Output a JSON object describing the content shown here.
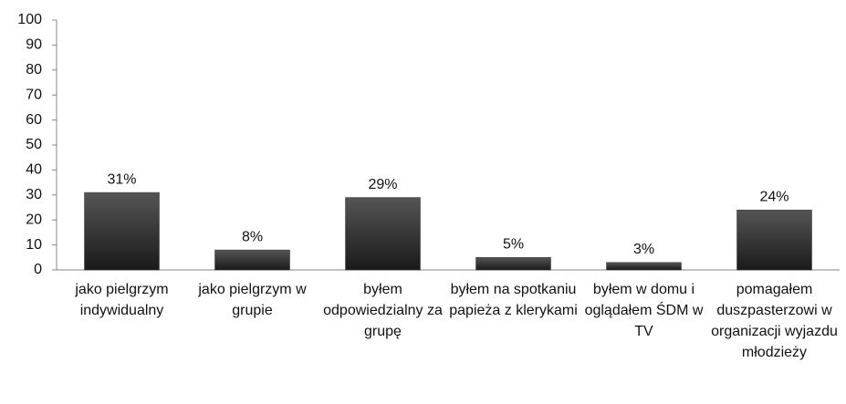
{
  "chart_data": {
    "type": "bar",
    "categories": [
      "jako pielgrzym indywidualny",
      "jako pielgrzym w grupie",
      "byłem odpowiedzialny za grupę",
      "byłem na spotkaniu papieża z klerykami",
      "byłem w domu i oglądałem ŚDM w TV",
      "pomagałem duszpasterzowi w organizacji wyjazdu młodzieży"
    ],
    "values": [
      31,
      8,
      29,
      5,
      3,
      24
    ],
    "value_labels": [
      "31%",
      "8%",
      "29%",
      "5%",
      "3%",
      "24%"
    ],
    "color": "#333333",
    "ylim": [
      0,
      100
    ],
    "yticks": [
      0,
      10,
      20,
      30,
      40,
      50,
      60,
      70,
      80,
      90,
      100
    ],
    "grid": false
  }
}
